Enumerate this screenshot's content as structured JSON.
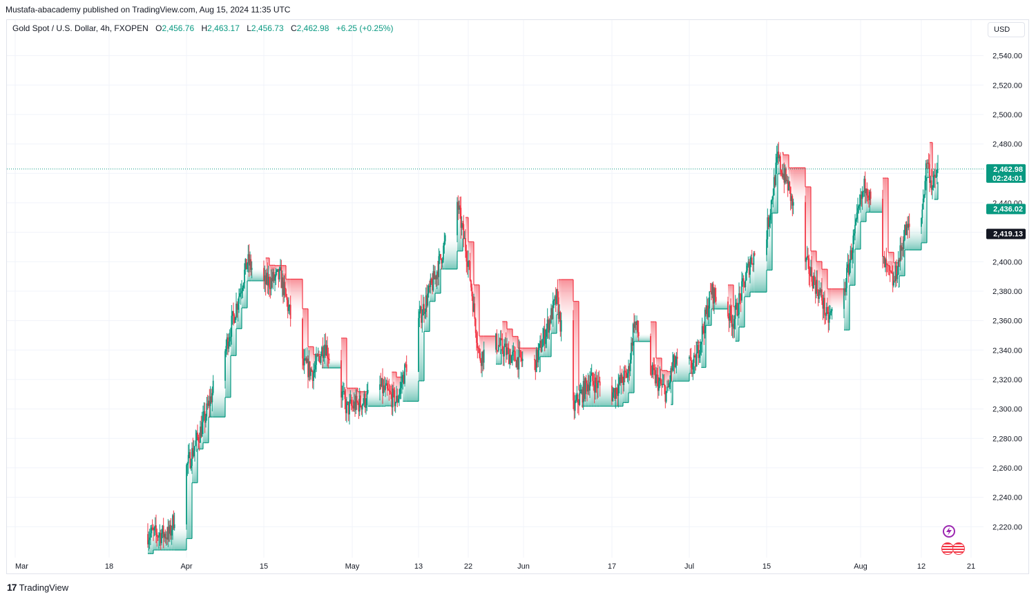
{
  "header": {
    "publisher": "Mustafa-abacademy published on TradingView.com, Aug 15, 2024 11:35 UTC"
  },
  "legend": {
    "symbol": "Gold Spot / U.S. Dollar, 4h, FXOPEN",
    "open_label": "O",
    "open": "2,456.76",
    "high_label": "H",
    "high": "2,463.17",
    "low_label": "L",
    "low": "2,456.73",
    "close_label": "C",
    "close": "2,462.98",
    "change": "+6.25 (+0.25%)"
  },
  "currency_button": "USD",
  "price_tags": {
    "last_price": "2,462.98",
    "countdown": "02:24:01",
    "indicator_value": "2,436.02",
    "crosshair_value": "2,419.13"
  },
  "brand": {
    "logo": "17",
    "name": "TradingView"
  },
  "icons": {
    "lightning": "lightning-icon",
    "flags": "us-flag-icon"
  },
  "colors": {
    "up": "#089981",
    "down": "#f23645",
    "grid": "#f0f3fa",
    "text": "#131722"
  },
  "chart_data": {
    "type": "candlestick",
    "symbol": "XAUUSD",
    "timeframe": "4h",
    "y_axis": {
      "ylim": [
        2207,
        2552
      ],
      "ticks": [
        2220,
        2240,
        2260,
        2280,
        2300,
        2320,
        2340,
        2360,
        2380,
        2400,
        2420,
        2440,
        2460,
        2480,
        2500,
        2520,
        2540
      ],
      "tick_labels": [
        "2,220.00",
        "2,240.00",
        "2,260.00",
        "2,280.00",
        "2,300.00",
        "2,320.00",
        "2,340.00",
        "2,360.00",
        "2,380.00",
        "2,400.00",
        "2,420.00",
        "2,440.00",
        "2,460.00",
        "2,480.00",
        "2,500.00",
        "2,520.00",
        "2,540.00"
      ]
    },
    "x_axis": {
      "range": [
        "2024-03-01",
        "2024-08-22"
      ],
      "ticks": [
        "2024-03-01",
        "2024-03-18",
        "2024-04-01",
        "2024-04-15",
        "2024-05-01",
        "2024-05-13",
        "2024-05-22",
        "2024-06-01",
        "2024-06-17",
        "2024-07-01",
        "2024-07-15",
        "2024-08-01",
        "2024-08-12",
        "2024-08-21"
      ],
      "tick_labels": [
        "Mar",
        "18",
        "Apr",
        "15",
        "May",
        "13",
        "22",
        "Jun",
        "17",
        "Jul",
        "15",
        "Aug",
        "12",
        "21"
      ]
    },
    "last_price": 2462.98,
    "path": [
      [
        "2024-03-23",
        2215
      ],
      [
        "2024-03-29",
        2215
      ],
      [
        "2024-04-01",
        2260
      ],
      [
        "2024-04-04",
        2290
      ],
      [
        "2024-04-08",
        2340
      ],
      [
        "2024-04-12",
        2400
      ],
      [
        "2024-04-15",
        2385
      ],
      [
        "2024-04-18",
        2390
      ],
      [
        "2024-04-22",
        2330
      ],
      [
        "2024-04-24",
        2325
      ],
      [
        "2024-04-26",
        2345
      ],
      [
        "2024-04-30",
        2300
      ],
      [
        "2024-05-03",
        2305
      ],
      [
        "2024-05-06",
        2315
      ],
      [
        "2024-05-09",
        2305
      ],
      [
        "2024-05-13",
        2360
      ],
      [
        "2024-05-16",
        2390
      ],
      [
        "2024-05-20",
        2440
      ],
      [
        "2024-05-22",
        2400
      ],
      [
        "2024-05-24",
        2335
      ],
      [
        "2024-05-27",
        2345
      ],
      [
        "2024-05-30",
        2335
      ],
      [
        "2024-06-03",
        2330
      ],
      [
        "2024-06-07",
        2375
      ],
      [
        "2024-06-10",
        2300
      ],
      [
        "2024-06-13",
        2320
      ],
      [
        "2024-06-17",
        2310
      ],
      [
        "2024-06-20",
        2325
      ],
      [
        "2024-06-21",
        2360
      ],
      [
        "2024-06-24",
        2325
      ],
      [
        "2024-06-27",
        2310
      ],
      [
        "2024-06-28",
        2330
      ],
      [
        "2024-07-02",
        2330
      ],
      [
        "2024-07-05",
        2380
      ],
      [
        "2024-07-09",
        2360
      ],
      [
        "2024-07-12",
        2400
      ],
      [
        "2024-07-15",
        2420
      ],
      [
        "2024-07-17",
        2470
      ],
      [
        "2024-07-19",
        2450
      ],
      [
        "2024-07-22",
        2400
      ],
      [
        "2024-07-25",
        2375
      ],
      [
        "2024-07-26",
        2360
      ],
      [
        "2024-07-29",
        2380
      ],
      [
        "2024-08-01",
        2440
      ],
      [
        "2024-08-02",
        2455
      ],
      [
        "2024-08-05",
        2400
      ],
      [
        "2024-08-07",
        2385
      ],
      [
        "2024-08-09",
        2420
      ],
      [
        "2024-08-12",
        2430
      ],
      [
        "2024-08-13",
        2470
      ],
      [
        "2024-08-14",
        2450
      ],
      [
        "2024-08-15",
        2462.98
      ]
    ],
    "indicator": {
      "type": "supertrend-like stepped band",
      "up_color": "#089981",
      "down_color": "#f23645",
      "current_value": 2436.02
    }
  }
}
